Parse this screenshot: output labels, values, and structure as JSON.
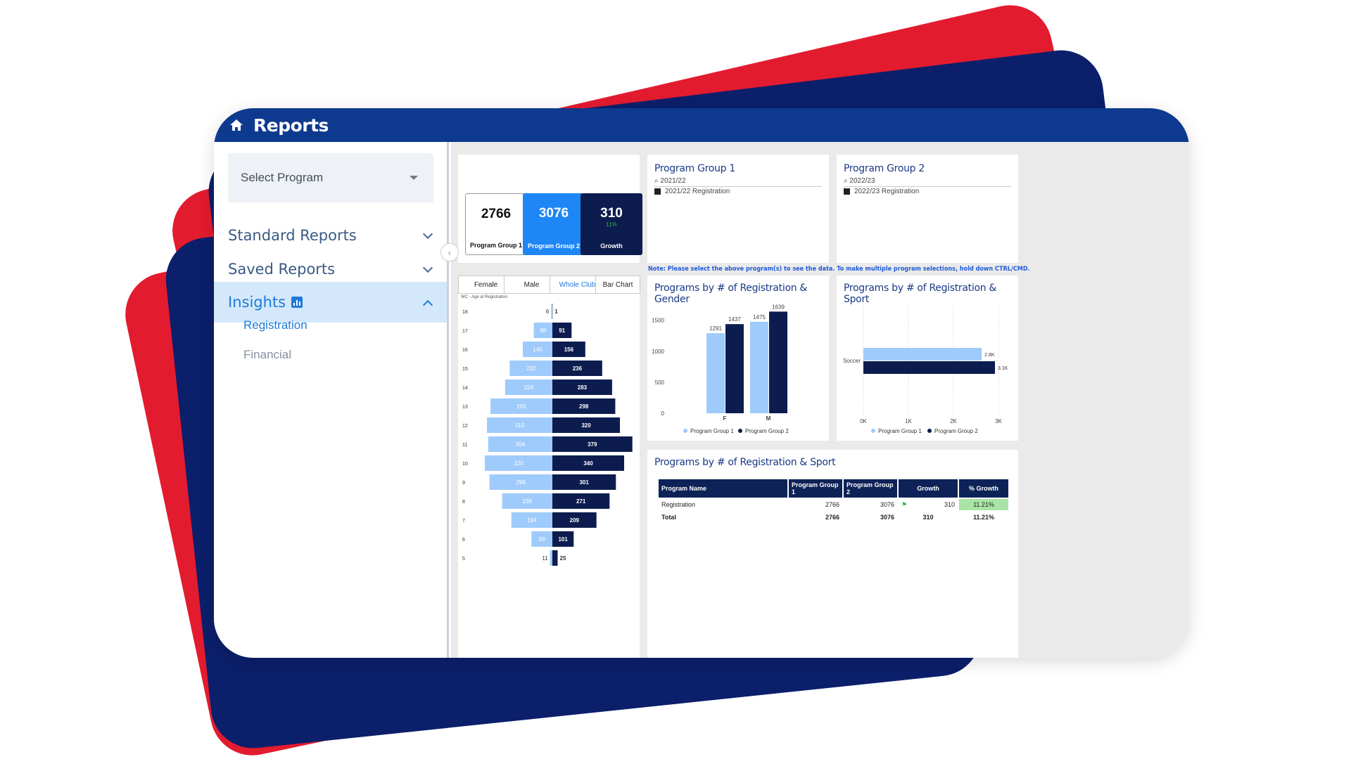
{
  "app": {
    "title": "Reports"
  },
  "sidebar": {
    "select_program": "Select Program",
    "items": [
      {
        "label": "Standard Reports"
      },
      {
        "label": "Saved Reports"
      },
      {
        "label": "Insights"
      }
    ],
    "sub_items": [
      {
        "label": "Registration"
      },
      {
        "label": "Financial"
      }
    ]
  },
  "kpis": [
    {
      "value": "2766",
      "label": "Program Group 1"
    },
    {
      "value": "3076",
      "label": "Program Group 2"
    },
    {
      "value": "310",
      "label": "Growth",
      "growth": "11%"
    }
  ],
  "slicers": [
    {
      "title": "Program Group 1",
      "search": "2021/22",
      "option": "2021/22 Registration"
    },
    {
      "title": "Program Group 2",
      "search": "2022/23",
      "option": "2022/23 Registration"
    }
  ],
  "note": "Note: Please select the above program(s) to see the data. To make multiple program selections, hold down CTRL/CMD.",
  "tabs": [
    "Female",
    "Male",
    "Whole Club",
    "Bar Chart"
  ],
  "pyramid": {
    "label": "WC - Age at Registration",
    "ages": [
      "18",
      "17",
      "16",
      "15",
      "14",
      "13",
      "12",
      "11",
      "10",
      "9",
      "8",
      "7",
      "6",
      "5"
    ],
    "group1": [
      6,
      88,
      140,
      202,
      224,
      293,
      310,
      304,
      320,
      298,
      238,
      194,
      99,
      11
    ],
    "group2": [
      1,
      91,
      156,
      236,
      283,
      298,
      320,
      379,
      340,
      301,
      271,
      209,
      101,
      25
    ]
  },
  "chart_data": [
    {
      "type": "bar",
      "title": "Programs by # of Registration & Gender",
      "categories": [
        "F",
        "M"
      ],
      "series": [
        {
          "name": "Program Group 1",
          "values": [
            1291,
            1475
          ]
        },
        {
          "name": "Program Group 2",
          "values": [
            1437,
            1639
          ]
        }
      ],
      "yticks": [
        "0",
        "500",
        "1000",
        "1500"
      ],
      "ylim": [
        0,
        1700
      ],
      "legend": "bottom"
    },
    {
      "type": "bar",
      "orientation": "horizontal",
      "title": "Programs by # of Registration & Sport",
      "categories": [
        "Soccer"
      ],
      "series": [
        {
          "name": "Program Group 1",
          "values": [
            2766
          ],
          "label": "2.8K"
        },
        {
          "name": "Program Group 2",
          "values": [
            3076
          ],
          "label": "3.1K"
        }
      ],
      "xticks": [
        "0K",
        "1K",
        "2K",
        "3K"
      ],
      "xlim": [
        0,
        3000
      ],
      "legend": "bottom"
    }
  ],
  "table": {
    "title": "Programs by # of Registration & Sport",
    "headers": [
      "Program Name",
      "Program Group 1",
      "Program Group 2",
      "Growth",
      "% Growth"
    ],
    "rows": [
      {
        "name": "Registration",
        "g1": "2766",
        "g2": "3076",
        "growth": "310",
        "pct": "11.21%"
      }
    ],
    "total": {
      "name": "Total",
      "g1": "2766",
      "g2": "3076",
      "growth": "310",
      "pct": "11.21%"
    }
  },
  "colors": {
    "light": "#9ecbfb",
    "dark": "#0d1c4e",
    "brand": "#0d3a8f",
    "accent": "#1f7ad8",
    "red": "#e31b2f"
  }
}
